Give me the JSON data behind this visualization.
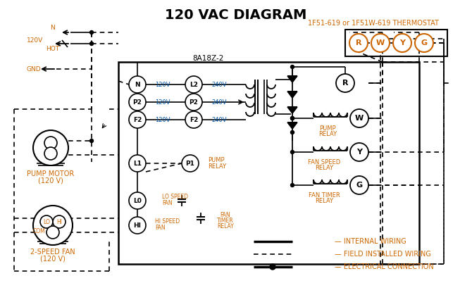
{
  "title": "120 VAC DIAGRAM",
  "title_fontsize": 14,
  "title_fontweight": "bold",
  "bg_color": "#ffffff",
  "line_color": "#000000",
  "orange_color": "#cc6600",
  "blue_color": "#0055aa",
  "thermostat_label": "1F51-619 or 1F51W-619 THERMOSTAT",
  "control_box_label": "8A18Z-2",
  "pump_motor_label": "PUMP MOTOR",
  "pump_motor_v": "(120 V)",
  "fan_label": "2-SPEED FAN",
  "fan_v": "(120 V)"
}
